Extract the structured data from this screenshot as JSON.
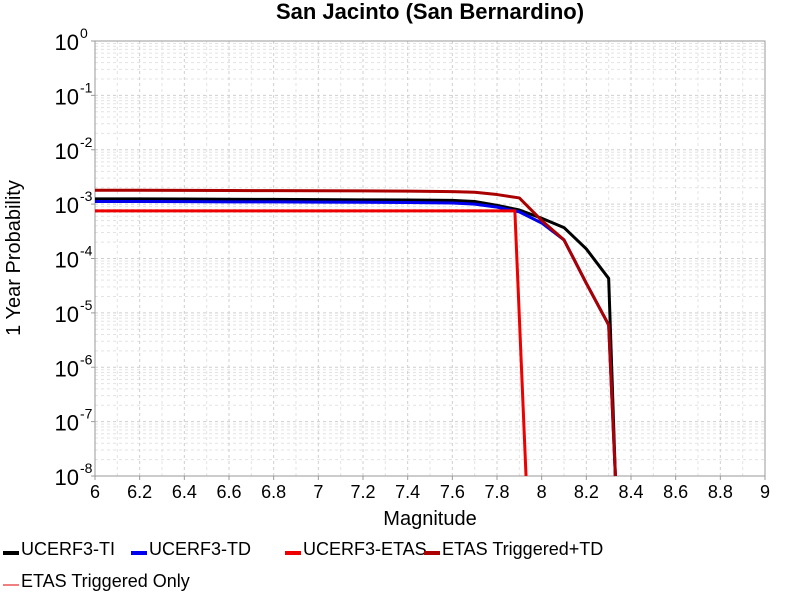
{
  "chart_data": {
    "type": "line",
    "title": "San Jacinto (San Bernardino)",
    "xlabel": "Magnitude",
    "ylabel": "1 Year Probability",
    "xlim": [
      6,
      9
    ],
    "ylim": [
      1e-08,
      1
    ],
    "yscale": "log",
    "grid": true,
    "legend_position": "bottom",
    "xticks": [
      "6",
      "6.2",
      "6.4",
      "6.6",
      "6.8",
      "7",
      "7.2",
      "7.4",
      "7.6",
      "7.8",
      "8",
      "8.2",
      "8.4",
      "8.6",
      "8.8",
      "9"
    ],
    "yticks": [
      {
        "value": 1,
        "base": "10",
        "exp": "0"
      },
      {
        "value": 0.1,
        "base": "10",
        "exp": "-1"
      },
      {
        "value": 0.01,
        "base": "10",
        "exp": "-2"
      },
      {
        "value": 0.001,
        "base": "10",
        "exp": "-3"
      },
      {
        "value": 0.0001,
        "base": "10",
        "exp": "-4"
      },
      {
        "value": 1e-05,
        "base": "10",
        "exp": "-5"
      },
      {
        "value": 1e-06,
        "base": "10",
        "exp": "-6"
      },
      {
        "value": 1e-07,
        "base": "10",
        "exp": "-7"
      },
      {
        "value": 1e-08,
        "base": "10",
        "exp": "-8"
      }
    ],
    "series": [
      {
        "name": "UCERF3-TI",
        "color": "#000000",
        "width": 3,
        "x": [
          6.0,
          6.2,
          6.4,
          6.6,
          6.8,
          7.0,
          7.2,
          7.4,
          7.6,
          7.7,
          7.8,
          7.9,
          8.0,
          8.1,
          8.2,
          8.3,
          8.33
        ],
        "y": [
          0.00125,
          0.00125,
          0.00124,
          0.00123,
          0.00122,
          0.00121,
          0.0012,
          0.00119,
          0.00117,
          0.00112,
          0.00095,
          0.00078,
          0.00055,
          0.00037,
          0.00015,
          4.3e-05,
          1e-08
        ]
      },
      {
        "name": "UCERF3-TD",
        "color": "#0000ee",
        "width": 3,
        "x": [
          6.0,
          6.2,
          6.4,
          6.6,
          6.8,
          7.0,
          7.2,
          7.4,
          7.6,
          7.7,
          7.8,
          7.9,
          8.0,
          8.1,
          8.2,
          8.3,
          8.33
        ],
        "y": [
          0.00112,
          0.00112,
          0.00111,
          0.0011,
          0.0011,
          0.00109,
          0.00108,
          0.00107,
          0.00105,
          0.001,
          0.00088,
          0.00072,
          0.00045,
          0.00022,
          3.5e-05,
          6e-06,
          1e-08
        ]
      },
      {
        "name": "UCERF3-ETAS",
        "color": "#ee0000",
        "width": 3,
        "x": [
          6.0,
          6.5,
          7.0,
          7.5,
          7.8,
          7.88,
          7.93
        ],
        "y": [
          0.00075,
          0.00075,
          0.00075,
          0.00075,
          0.00075,
          0.00075,
          1e-08
        ]
      },
      {
        "name": "ETAS Triggered+TD",
        "color": "#aa0000",
        "width": 3,
        "x": [
          6.0,
          6.2,
          6.4,
          6.6,
          6.8,
          7.0,
          7.2,
          7.4,
          7.6,
          7.7,
          7.8,
          7.9,
          8.0,
          8.1,
          8.2,
          8.3,
          8.33
        ],
        "y": [
          0.0018,
          0.0018,
          0.00179,
          0.00178,
          0.00177,
          0.00176,
          0.00175,
          0.00173,
          0.0017,
          0.00165,
          0.0015,
          0.0013,
          0.0005,
          0.00022,
          3.5e-05,
          6e-06,
          1e-08
        ]
      },
      {
        "name": "ETAS Triggered Only",
        "color": "#f08080",
        "width": 1.5,
        "x": [],
        "y": []
      }
    ]
  }
}
